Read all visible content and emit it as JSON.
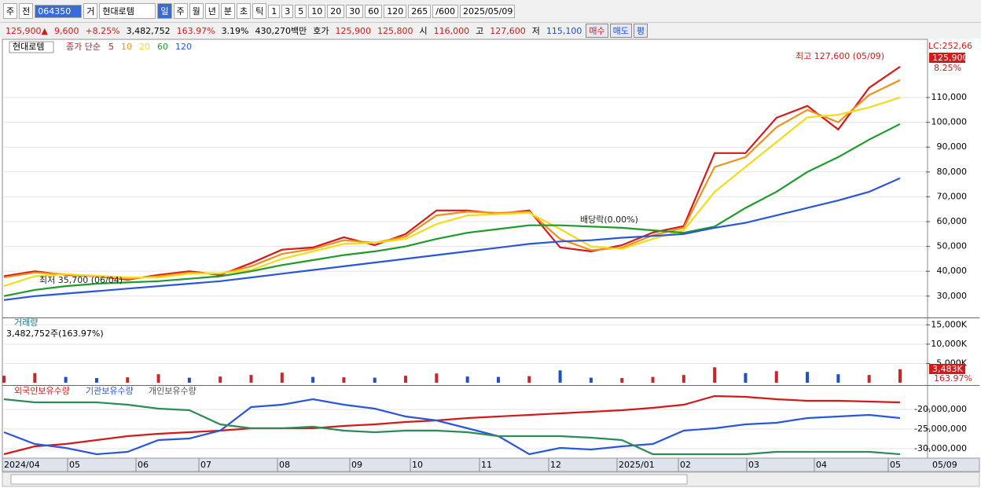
{
  "toolbar": {
    "items": [
      "주",
      "전",
      "064350",
      "거",
      "현대로템",
      "일",
      "주",
      "월",
      "년",
      "분",
      "초",
      "틱",
      "1",
      "3",
      "5",
      "10",
      "20",
      "30",
      "60",
      "120",
      "265",
      "/600",
      "2025/05/09"
    ]
  },
  "info_bar": {
    "items": [
      "125,900▲",
      "9,600",
      "+8.25%",
      "3,482,752",
      "163.97%",
      "3.19%",
      "430,270백만",
      "호가",
      "125,900",
      "125,800",
      "시",
      "116,000",
      "고",
      "127,600",
      "저",
      "115,100"
    ],
    "buttons": [
      "매수",
      "매도",
      "평"
    ]
  },
  "x_axis": {
    "labels": [
      "2024/04",
      "05",
      "06",
      "07",
      "08",
      "09",
      "10",
      "11",
      "12",
      "2025/01",
      "02",
      "03",
      "04",
      "05"
    ],
    "end_label": "05/09"
  },
  "chart_data": [
    {
      "type": "line",
      "legend_title": "현대로템",
      "legend_label": "종가 단순",
      "lc_label": "LC:252,66",
      "price_label": "125,900",
      "change_label": "8.25%",
      "high_label": "최고 127,600 (05/09)",
      "low_label": "최저 35,700 (06/04)",
      "event_label": "배당락(0.00%)",
      "ylim": [
        21700,
        132800
      ],
      "grid": true,
      "yticks": [
        {
          "value": 30000,
          "label": "30,000"
        },
        {
          "value": 40000,
          "label": "40,000"
        },
        {
          "value": 50000,
          "label": "50,000"
        },
        {
          "value": 60000,
          "label": "60,000"
        },
        {
          "value": 70000,
          "label": "70,000"
        },
        {
          "value": 80000,
          "label": "80,000"
        },
        {
          "value": 90000,
          "label": "90,000"
        },
        {
          "value": 100000,
          "label": "100,000"
        },
        {
          "value": 110000,
          "label": "110,000"
        }
      ],
      "series": [
        {
          "name": "5",
          "color": "#d21a1a",
          "values": [
            38000,
            40000,
            38500,
            38000,
            36600,
            38500,
            40000,
            38500,
            43300,
            48700,
            49600,
            53700,
            50500,
            55000,
            64500,
            64500,
            63200,
            64500,
            49600,
            48000,
            50500,
            55600,
            58200,
            87600,
            87600,
            101800,
            106600,
            97100,
            113900,
            122400
          ]
        },
        {
          "name": "10",
          "color": "#f0901c",
          "values": [
            37500,
            39500,
            38800,
            38000,
            37000,
            38000,
            39500,
            39000,
            42000,
            47000,
            49000,
            52500,
            51500,
            54000,
            62500,
            64000,
            63500,
            64000,
            53000,
            48500,
            49500,
            54500,
            57500,
            82000,
            86000,
            98000,
            105000,
            100000,
            111000,
            117000
          ]
        },
        {
          "name": "20",
          "color": "#f2dc18",
          "values": [
            34000,
            38000,
            38800,
            38200,
            37500,
            37500,
            39000,
            39200,
            40500,
            45000,
            48000,
            51000,
            51500,
            53000,
            59000,
            62500,
            63000,
            63500,
            57000,
            50000,
            49000,
            53000,
            56500,
            72000,
            82000,
            92000,
            102000,
            103000,
            106000,
            110000
          ]
        },
        {
          "name": "60",
          "color": "#1e9a2a",
          "values": [
            30000,
            32500,
            34000,
            35000,
            35500,
            36000,
            37000,
            38000,
            40000,
            42500,
            44500,
            46500,
            48000,
            50000,
            53000,
            55500,
            57000,
            58500,
            58500,
            58000,
            57500,
            56500,
            55500,
            58000,
            65500,
            72000,
            80000,
            86000,
            93000,
            99300
          ]
        },
        {
          "name": "120",
          "color": "#2a56d8",
          "values": [
            28400,
            30000,
            31000,
            32000,
            33000,
            34000,
            35000,
            36000,
            37500,
            39000,
            40500,
            42000,
            43500,
            45000,
            46500,
            48000,
            49500,
            51000,
            52000,
            52500,
            53500,
            54200,
            55000,
            57500,
            59500,
            62500,
            65500,
            68500,
            72000,
            77500
          ]
        }
      ]
    },
    {
      "type": "bar",
      "title": "거래량",
      "subtitle": "3,482,752주(163.97%)",
      "volume_label": "3,483K",
      "ratio_label": "163.97%",
      "ylim": [
        0,
        16500
      ],
      "grid": true,
      "yticks": [
        {
          "value": 5000,
          "label": "5,000K"
        },
        {
          "value": 10000,
          "label": "10,000K"
        },
        {
          "value": 15000,
          "label": "15,000K"
        }
      ],
      "values": [
        1800,
        2500,
        1500,
        1200,
        1400,
        2200,
        1300,
        1600,
        2000,
        2600,
        1500,
        1400,
        1300,
        1800,
        2400,
        1600,
        1500,
        1700,
        3200,
        1300,
        1200,
        1500,
        2000,
        4000,
        2500,
        3000,
        2800,
        2200,
        2000,
        3483
      ],
      "colors": [
        "#c62828",
        "#c62828",
        "#1e4fc4",
        "#1e4fc4",
        "#c62828",
        "#c62828",
        "#1e4fc4",
        "#c62828",
        "#c62828",
        "#c62828",
        "#1e4fc4",
        "#c62828",
        "#1e4fc4",
        "#c62828",
        "#c62828",
        "#1e4fc4",
        "#1e4fc4",
        "#c62828",
        "#1e4fc4",
        "#1e4fc4",
        "#c62828",
        "#c62828",
        "#c62828",
        "#c62828",
        "#1e4fc4",
        "#c62828",
        "#1e4fc4",
        "#1e4fc4",
        "#c62828",
        "#c62828"
      ]
    },
    {
      "type": "line",
      "ylim": [
        -32200000,
        -14200000
      ],
      "grid": true,
      "yticks": [
        {
          "value": -20000000,
          "label": "-20,000,000"
        },
        {
          "value": -25000000,
          "label": "-25,000,000"
        },
        {
          "value": -30000000,
          "label": "-30,000,000"
        }
      ],
      "series": [
        {
          "name": "외국인보유수량",
          "color": "#d21a1a",
          "values": [
            -31400000,
            -29400000,
            -28800000,
            -27800000,
            -26800000,
            -26200000,
            -25800000,
            -25400000,
            -24800000,
            -24800000,
            -24800000,
            -24200000,
            -23800000,
            -23200000,
            -22800000,
            -22200000,
            -21800000,
            -21400000,
            -21000000,
            -20600000,
            -20200000,
            -19600000,
            -18800000,
            -16600000,
            -16800000,
            -17400000,
            -17800000,
            -17800000,
            -18000000,
            -18200000
          ]
        },
        {
          "name": "기관보유수량",
          "color": "#2a56d8",
          "values": [
            -25800000,
            -28800000,
            -29800000,
            -31400000,
            -30800000,
            -27800000,
            -27400000,
            -25400000,
            -19400000,
            -18800000,
            -17400000,
            -18800000,
            -19800000,
            -21800000,
            -22800000,
            -24800000,
            -26800000,
            -31400000,
            -29800000,
            -30200000,
            -29400000,
            -28800000,
            -25400000,
            -24800000,
            -23800000,
            -23400000,
            -22200000,
            -21800000,
            -21400000,
            -22200000
          ]
        },
        {
          "name": "개인보유수량",
          "color": "#2e8b57",
          "values": [
            -17400000,
            -18200000,
            -18200000,
            -18200000,
            -18800000,
            -19800000,
            -20200000,
            -23800000,
            -24800000,
            -24800000,
            -24400000,
            -25400000,
            -25800000,
            -25400000,
            -25400000,
            -25800000,
            -26800000,
            -26800000,
            -26800000,
            -27200000,
            -27800000,
            -31400000,
            -31400000,
            -31400000,
            -31400000,
            -30800000,
            -30800000,
            -30800000,
            -30800000,
            -31400000
          ]
        }
      ]
    }
  ]
}
